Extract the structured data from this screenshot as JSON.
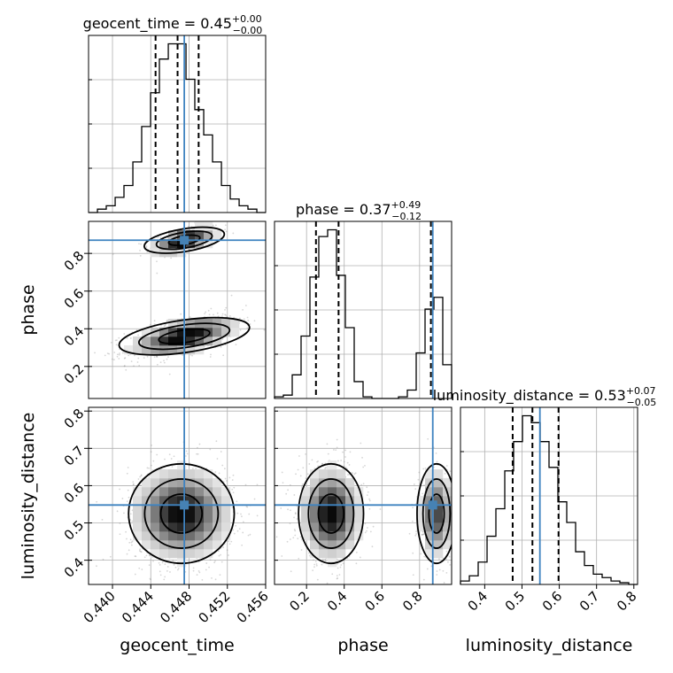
{
  "chart_data": {
    "type": "corner",
    "parameters": [
      "geocent_time",
      "phase",
      "luminosity_distance"
    ],
    "truth_color": "#4682b4",
    "truths": {
      "geocent_time": 0.4475,
      "phase": 0.87,
      "luminosity_distance": 0.548
    },
    "titles": {
      "geocent_time": {
        "name": "geocent_time",
        "median": "0.45",
        "upper": "+0.00",
        "lower": "−0.00"
      },
      "phase": {
        "name": "phase",
        "median": "0.37",
        "upper": "+0.49",
        "lower": "−0.12"
      },
      "luminosity_distance": {
        "name": "luminosity_distance",
        "median": "0.53",
        "upper": "+0.07",
        "lower": "−0.05"
      }
    },
    "ranges": {
      "geocent_time": [
        0.4375,
        0.456
      ],
      "phase": [
        0.03,
        0.97
      ],
      "luminosity_distance": [
        0.335,
        0.81
      ]
    },
    "ticks": {
      "geocent_time": [
        "0.440",
        "0.444",
        "0.448",
        "0.452",
        "0.456"
      ],
      "phase": [
        "0.2",
        "0.4",
        "0.6",
        "0.8"
      ],
      "luminosity_distance": [
        "0.4",
        "0.5",
        "0.6",
        "0.7",
        "0.8"
      ]
    },
    "quantiles": {
      "geocent_time": [
        0.4445,
        0.4468,
        0.449
      ],
      "phase": [
        0.25,
        0.37,
        0.86
      ],
      "luminosity_distance": [
        0.475,
        0.528,
        0.598
      ]
    },
    "histograms": {
      "geocent_time": {
        "edges": [
          0.4375,
          0.43843,
          0.43935,
          0.44028,
          0.4412,
          0.44213,
          0.44305,
          0.44398,
          0.4449,
          0.44583,
          0.44675,
          0.44768,
          0.4486,
          0.44953,
          0.45045,
          0.45138,
          0.4523,
          0.45323,
          0.45415,
          0.45508,
          0.456
        ],
        "counts": [
          0,
          0.02,
          0.04,
          0.09,
          0.16,
          0.3,
          0.51,
          0.71,
          0.91,
          1.0,
          1.0,
          0.79,
          0.61,
          0.46,
          0.3,
          0.16,
          0.08,
          0.04,
          0.02,
          0
        ]
      },
      "phase": {
        "edges": [
          0.03,
          0.077,
          0.124,
          0.171,
          0.218,
          0.265,
          0.312,
          0.359,
          0.406,
          0.453,
          0.5,
          0.547,
          0.594,
          0.641,
          0.688,
          0.735,
          0.782,
          0.829,
          0.876,
          0.923,
          0.97
        ],
        "counts": [
          0.01,
          0.02,
          0.14,
          0.37,
          0.72,
          0.96,
          1.0,
          0.73,
          0.42,
          0.1,
          0.01,
          0,
          0,
          0,
          0.01,
          0.05,
          0.27,
          0.53,
          0.6,
          0.2
        ]
      },
      "luminosity_distance": {
        "edges": [
          0.335,
          0.3588,
          0.3825,
          0.4063,
          0.43,
          0.4538,
          0.4775,
          0.5013,
          0.525,
          0.5488,
          0.5725,
          0.5963,
          0.62,
          0.6438,
          0.6675,
          0.6913,
          0.715,
          0.7388,
          0.7625,
          0.7863,
          0.81
        ],
        "counts": [
          0.02,
          0.05,
          0.13,
          0.28,
          0.44,
          0.66,
          0.83,
          0.98,
          0.94,
          0.83,
          0.68,
          0.48,
          0.36,
          0.19,
          0.11,
          0.06,
          0.04,
          0.02,
          0.01,
          0
        ]
      }
    },
    "joint_modes": {
      "phase_vs_geocent_time": [
        {
          "center": [
            0.4475,
            0.87
          ],
          "spread": [
            0.0016,
            0.035
          ],
          "weight": 0.3
        },
        {
          "center": [
            0.4475,
            0.36
          ],
          "spread": [
            0.0026,
            0.05
          ],
          "weight": 0.7
        }
      ],
      "luminosity_distance_vs_geocent_time": [
        {
          "center": [
            0.4472,
            0.525
          ],
          "spread": [
            0.0024,
            0.058
          ],
          "weight": 1
        }
      ],
      "luminosity_distance_vs_phase": [
        {
          "center": [
            0.33,
            0.525
          ],
          "spread": [
            0.075,
            0.058
          ],
          "weight": 0.7
        },
        {
          "center": [
            0.89,
            0.525
          ],
          "spread": [
            0.045,
            0.058
          ],
          "weight": 0.3
        }
      ]
    }
  }
}
